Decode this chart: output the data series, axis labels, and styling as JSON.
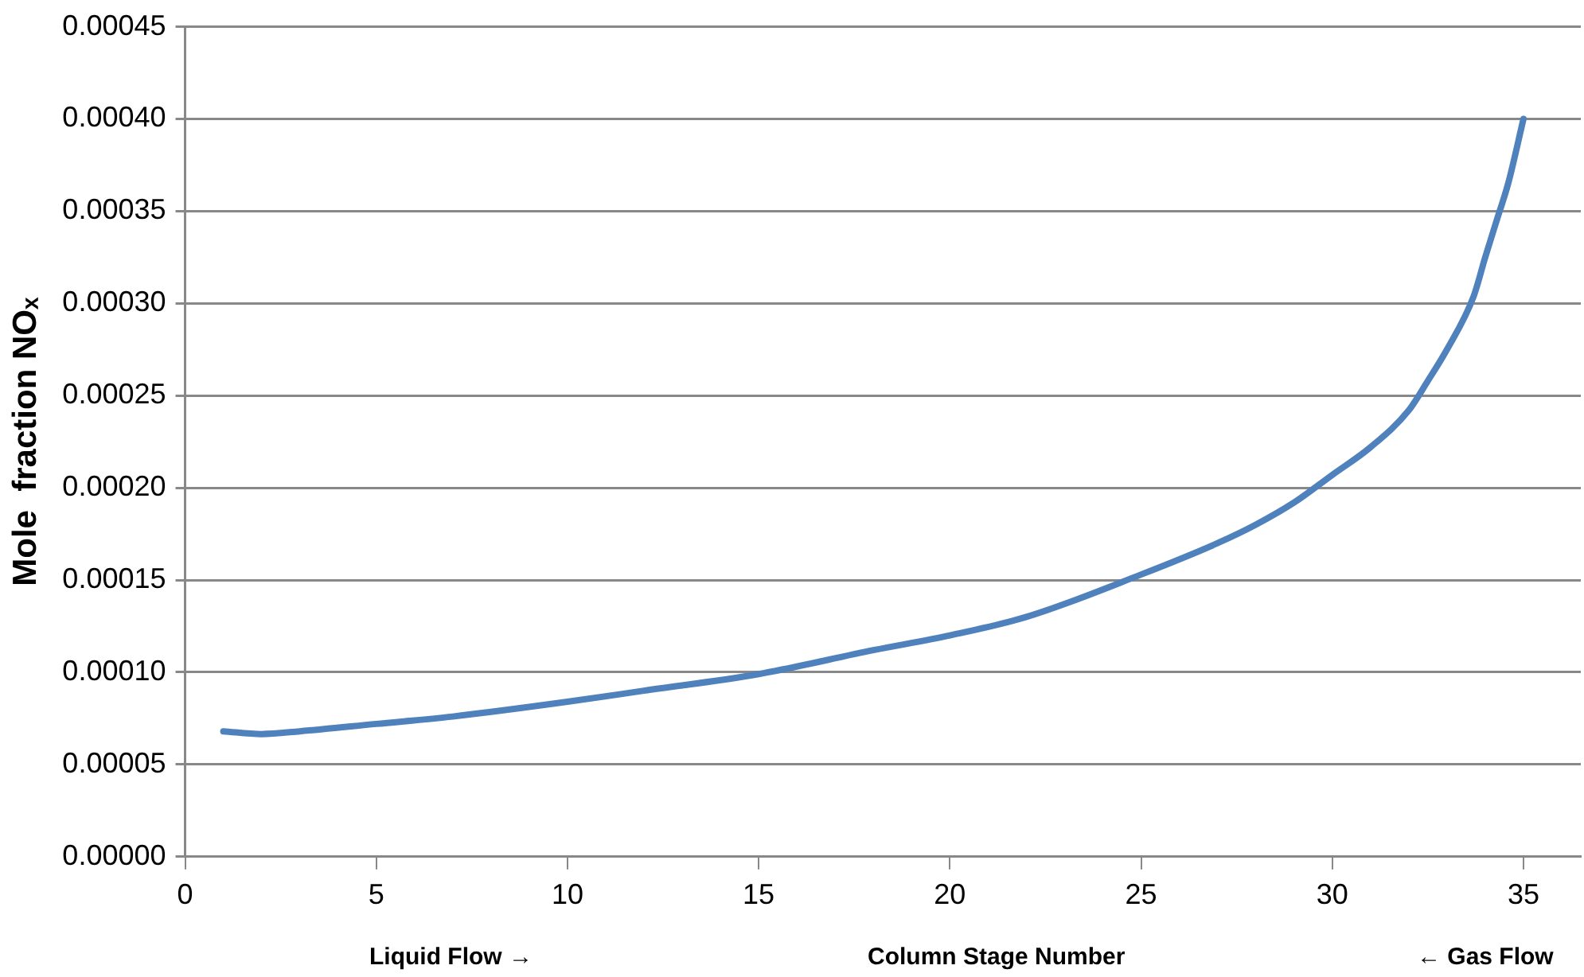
{
  "chart_data": {
    "type": "line",
    "xlabel": "Column Stage Number",
    "ylabel": "Mole  fraction NOₓ",
    "annotations": [
      "Liquid Flow →",
      "← Gas Flow"
    ],
    "x": [
      1,
      2,
      3,
      5,
      7,
      10,
      12,
      15,
      18,
      20,
      22,
      25,
      27,
      28,
      29,
      30,
      31,
      32,
      32.5,
      33,
      33.7,
      34,
      34.3,
      34.6,
      35
    ],
    "series": [
      {
        "color": "#4f81bd",
        "values": [
          6.8e-05,
          6.65e-05,
          6.8e-05,
          7.2e-05,
          7.6e-05,
          8.4e-05,
          9e-05,
          9.9e-05,
          0.000112,
          0.00012,
          0.00013,
          0.000153,
          0.00017,
          0.00018,
          0.000192,
          0.000207,
          0.000222,
          0.000242,
          0.000258,
          0.000275,
          0.000304,
          0.000325,
          0.000345,
          0.000365,
          0.0004
        ]
      }
    ],
    "xlim": [
      0,
      36.5
    ],
    "xticks": [
      0,
      5,
      10,
      15,
      20,
      25,
      30,
      35
    ],
    "ylim": [
      0,
      0.00045
    ],
    "yticks": [
      {
        "value": 0,
        "label": "0.00000"
      },
      {
        "value": 5e-05,
        "label": "0.00005"
      },
      {
        "value": 0.0001,
        "label": "0.00010"
      },
      {
        "value": 0.00015,
        "label": "0.00015"
      },
      {
        "value": 0.0002,
        "label": "0.00020"
      },
      {
        "value": 0.00025,
        "label": "0.00025"
      },
      {
        "value": 0.0003,
        "label": "0.00030"
      },
      {
        "value": 0.00035,
        "label": "0.00035"
      },
      {
        "value": 0.0004,
        "label": "0.00040"
      },
      {
        "value": 0.00045,
        "label": "0.00045"
      }
    ],
    "grid": "y",
    "legend": false,
    "marker": "none",
    "line_style": "solid"
  }
}
